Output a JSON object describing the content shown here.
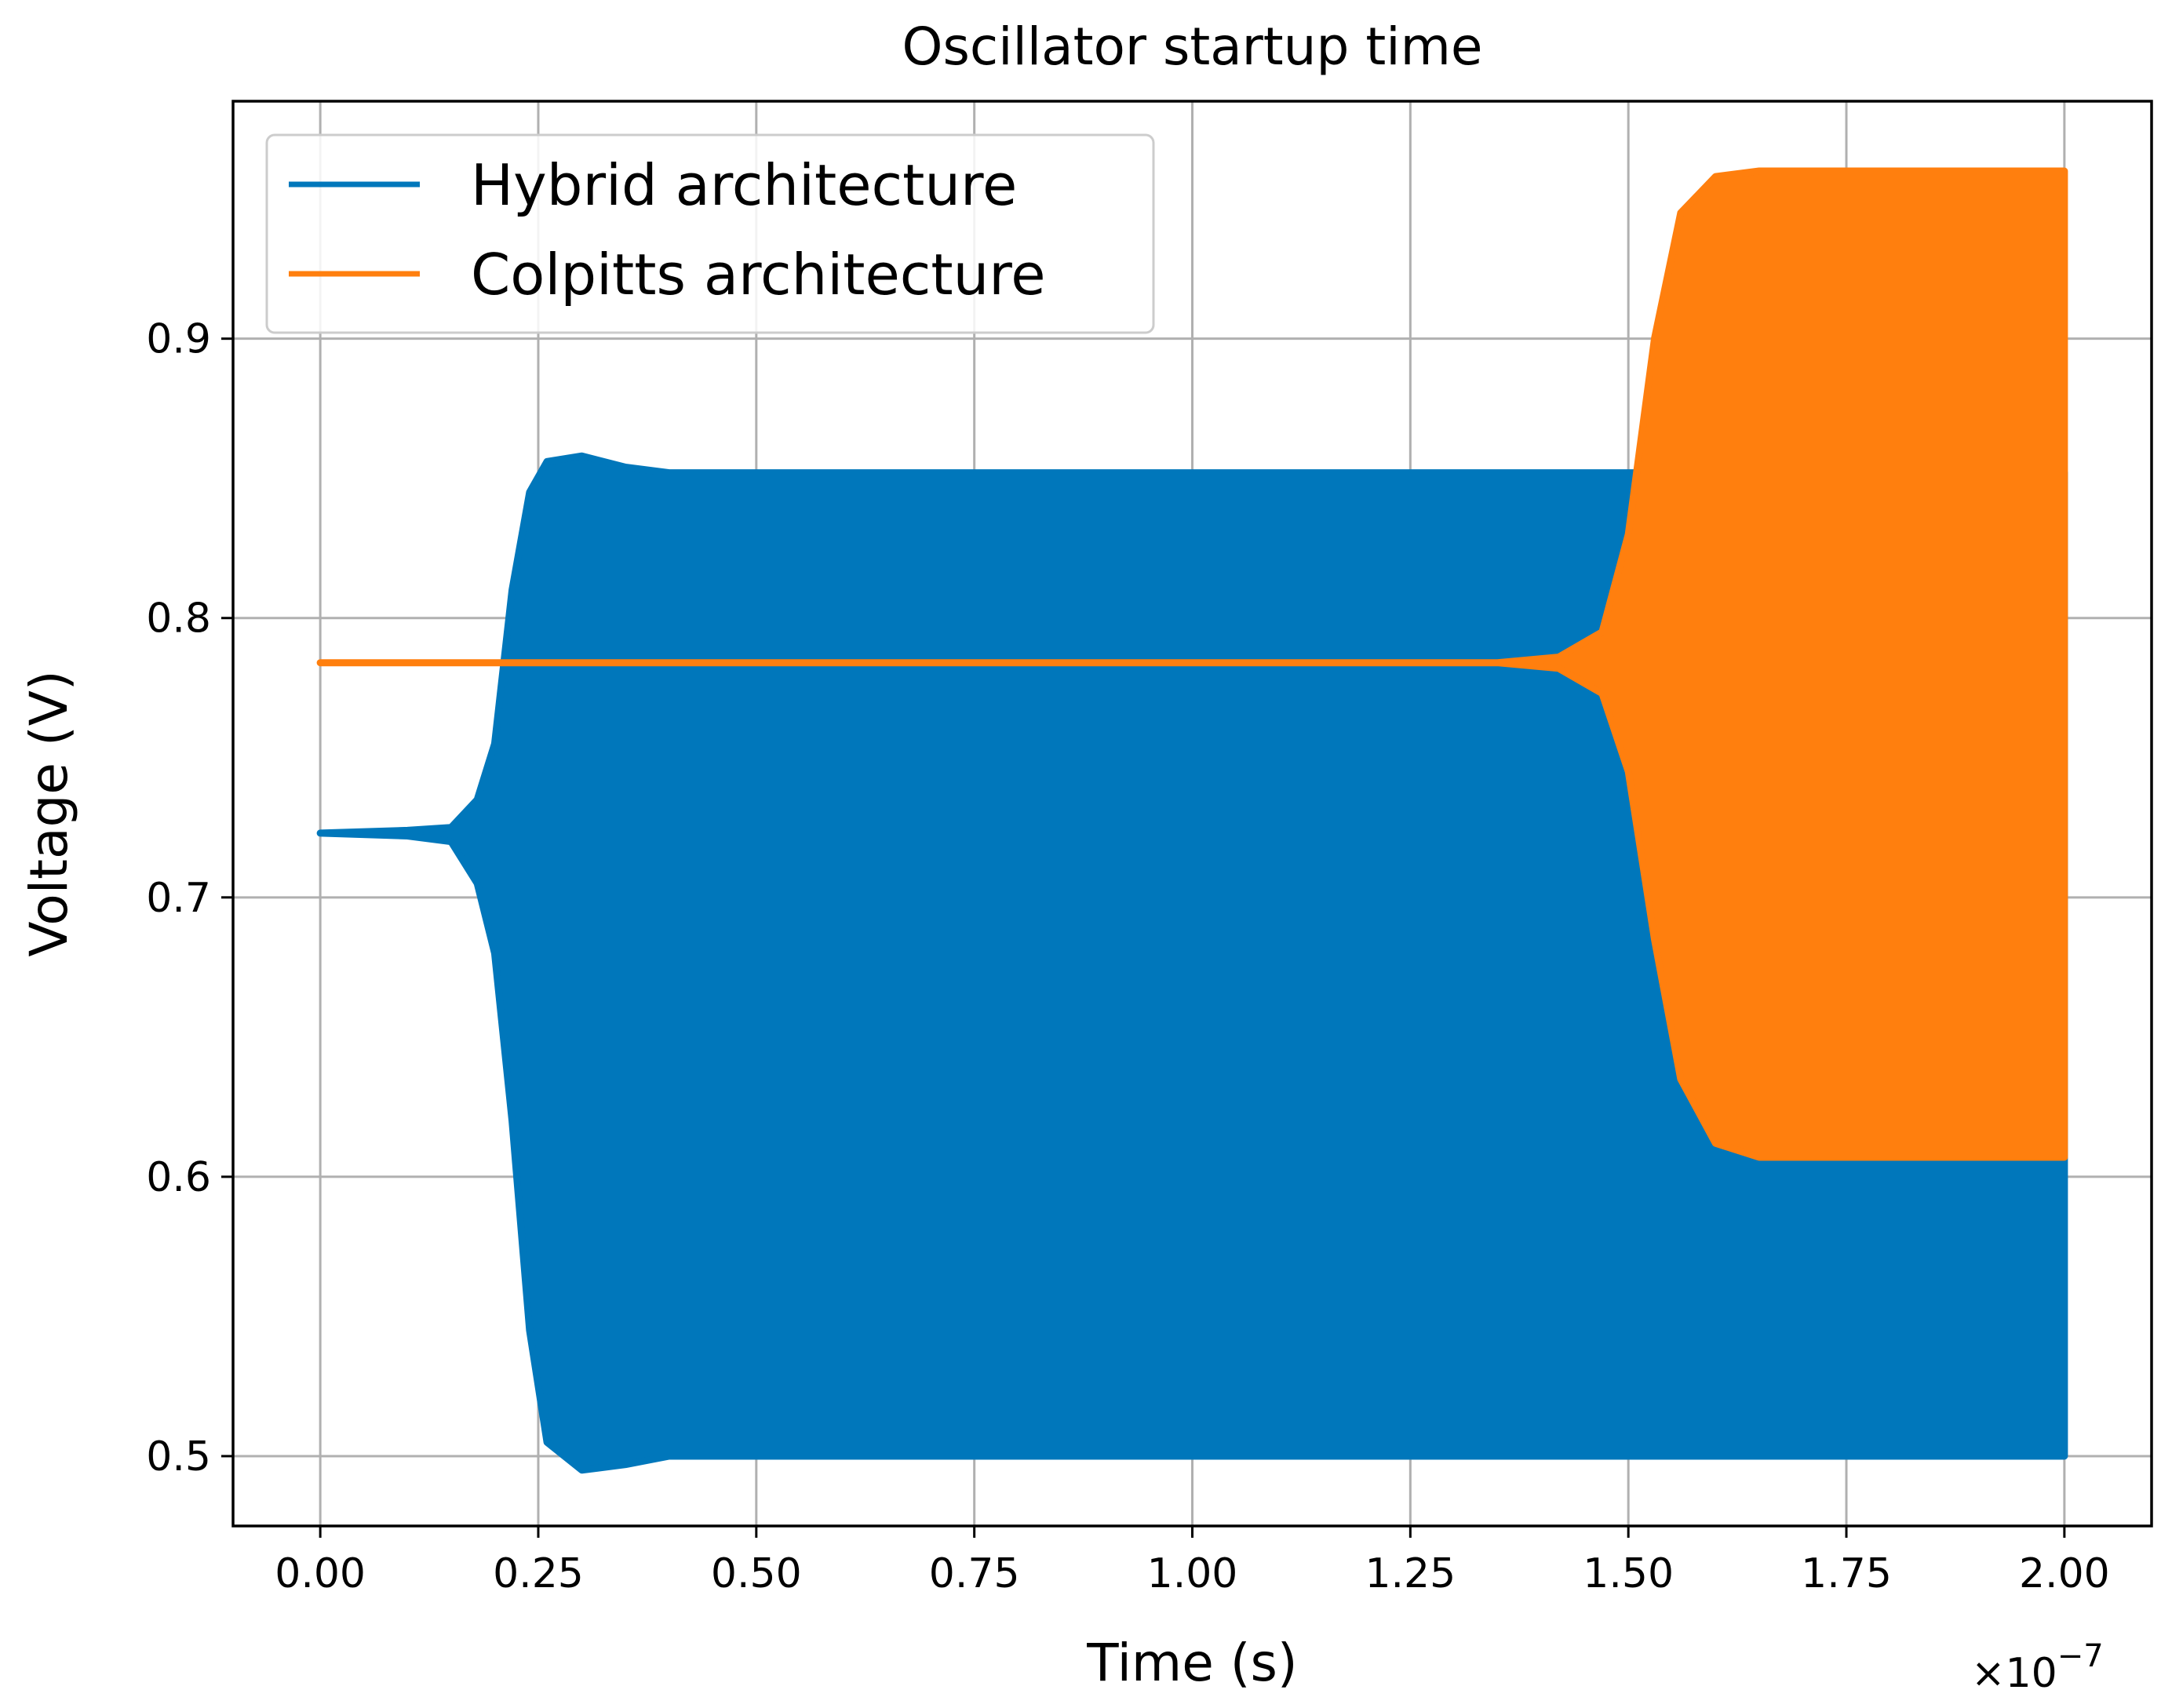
{
  "chart_data": {
    "type": "area",
    "title": "Oscillator startup time",
    "xlabel": "Time (s)",
    "ylabel": "Voltage (V)",
    "x_offset_label": "×10",
    "x_offset_exponent": "−7",
    "xlim": [
      -0.1,
      2.1
    ],
    "ylim": [
      0.475,
      0.985
    ],
    "x_ticks": [
      0.0,
      0.25,
      0.5,
      0.75,
      1.0,
      1.25,
      1.5,
      1.75,
      2.0
    ],
    "x_tick_labels": [
      "0.00",
      "0.25",
      "0.50",
      "0.75",
      "1.00",
      "1.25",
      "1.50",
      "1.75",
      "2.00"
    ],
    "y_ticks": [
      0.5,
      0.6,
      0.7,
      0.8,
      0.9
    ],
    "y_tick_labels": [
      "0.5",
      "0.6",
      "0.7",
      "0.8",
      "0.9"
    ],
    "grid": true,
    "legend_position": "top-left",
    "series": [
      {
        "name": "Hybrid architecture",
        "color": "#0077bb",
        "x": [
          0.0,
          0.1,
          0.15,
          0.18,
          0.2,
          0.22,
          0.24,
          0.26,
          0.3,
          0.35,
          0.4,
          0.5,
          1.0,
          1.5,
          2.0
        ],
        "upper": [
          0.723,
          0.724,
          0.725,
          0.735,
          0.755,
          0.81,
          0.845,
          0.856,
          0.858,
          0.854,
          0.852,
          0.852,
          0.852,
          0.852,
          0.852
        ],
        "lower": [
          0.723,
          0.722,
          0.72,
          0.705,
          0.68,
          0.62,
          0.545,
          0.505,
          0.495,
          0.497,
          0.5,
          0.5,
          0.5,
          0.5,
          0.5
        ]
      },
      {
        "name": "Colpitts architecture",
        "color": "#ff7f0e",
        "x": [
          0.0,
          1.0,
          1.35,
          1.42,
          1.47,
          1.5,
          1.53,
          1.56,
          1.6,
          1.65,
          1.7,
          2.0
        ],
        "upper": [
          0.784,
          0.784,
          0.784,
          0.786,
          0.795,
          0.83,
          0.9,
          0.945,
          0.958,
          0.96,
          0.96,
          0.96
        ],
        "lower": [
          0.784,
          0.784,
          0.784,
          0.782,
          0.773,
          0.745,
          0.685,
          0.635,
          0.612,
          0.607,
          0.607,
          0.607
        ]
      }
    ]
  }
}
